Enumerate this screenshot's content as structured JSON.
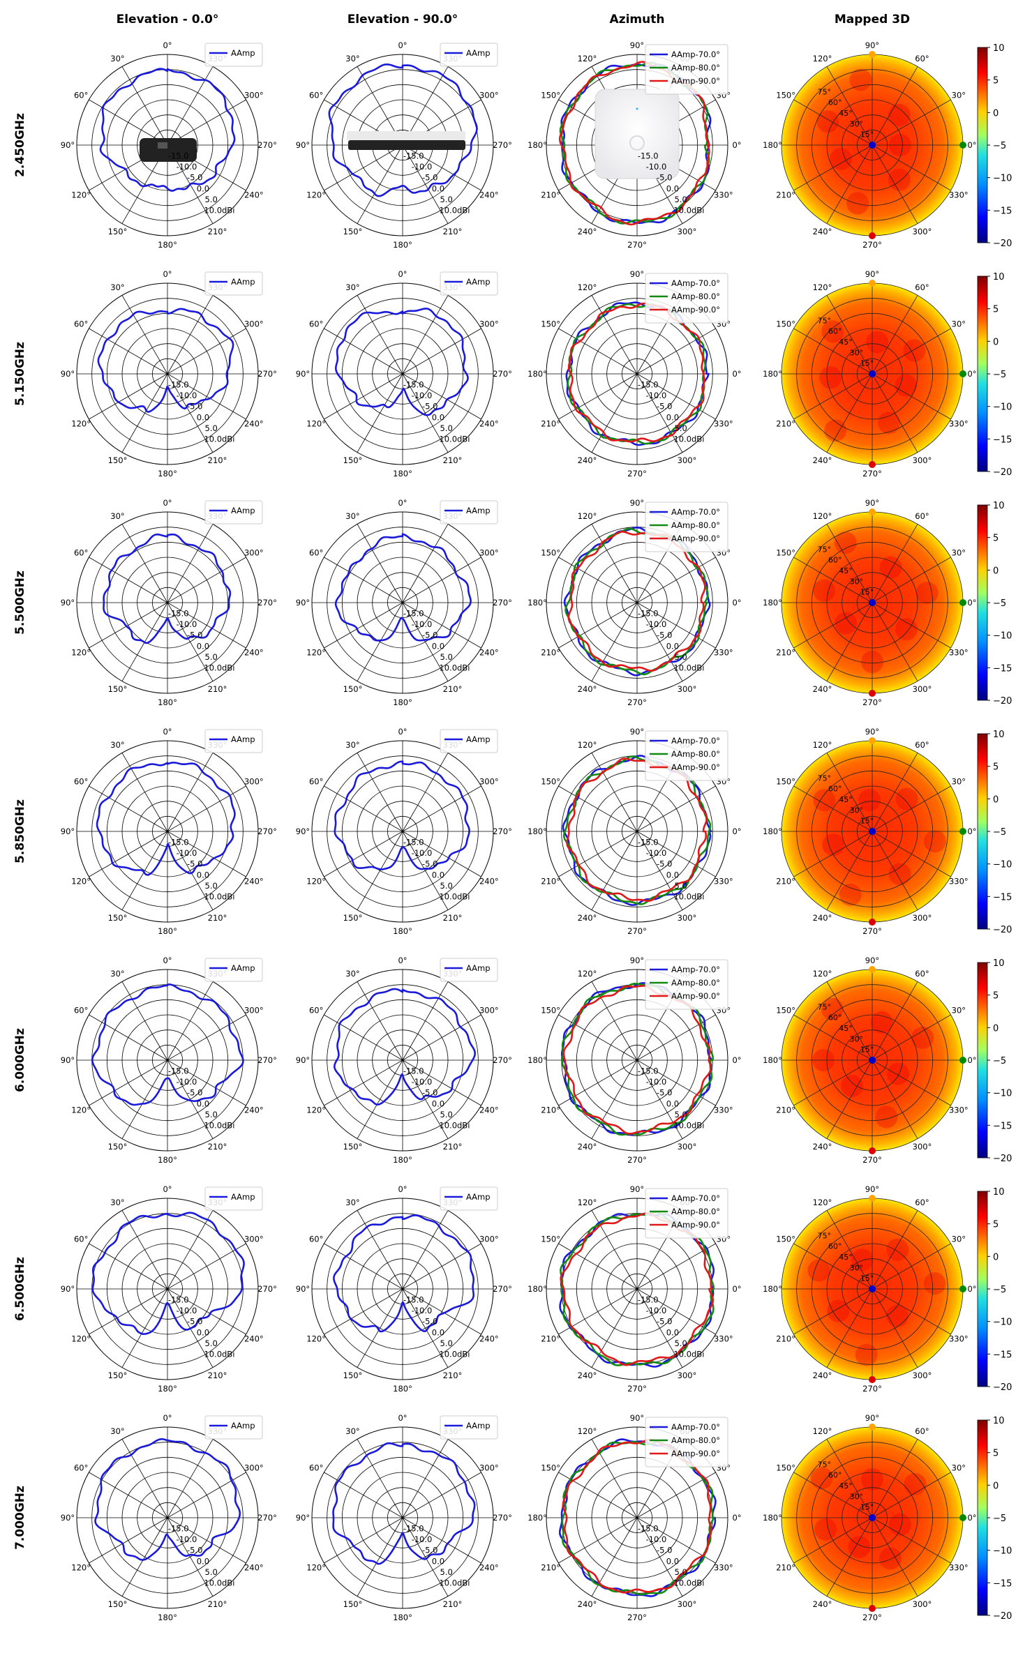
{
  "columns": [
    "Elevation - 0.0°",
    "Elevation - 90.0°",
    "Azimuth",
    "Mapped 3D"
  ],
  "rows": [
    "2.450GHz",
    "5.150GHz",
    "5.500GHz",
    "5.850GHz",
    "6.000GHz",
    "6.500GHz",
    "7.000GHz"
  ],
  "elevation_angle_labels": [
    "0°",
    "30°",
    "60°",
    "90°",
    "120°",
    "150°",
    "180°",
    "210°",
    "240°",
    "270°",
    "300°",
    "330°"
  ],
  "azimuth_angle_labels": [
    "0°",
    "30°",
    "60°",
    "90°",
    "120°",
    "150°",
    "180°",
    "210°",
    "240°",
    "270°",
    "300°",
    "330°"
  ],
  "radial_labels": [
    "-15.0",
    "-10.0",
    "-5.0",
    "0.0",
    "5.0",
    "10.0dBi"
  ],
  "elevation_legend": [
    "AAmp"
  ],
  "azimuth_legend": [
    "AAmp-70.0°",
    "AAmp-80.0°",
    "AAmp-90.0°"
  ],
  "mapped_theta_labels": [
    "15°",
    "30°",
    "45°",
    "60°",
    "75°"
  ],
  "colorbar_ticks": [
    "10",
    "5",
    "0",
    "−5",
    "−10",
    "−15",
    "−20"
  ],
  "series_colors": {
    "AAmp": "#1a1adb",
    "AAmp-70.0°": "#1a1adb",
    "AAmp-80.0°": "#118a11",
    "AAmp-90.0°": "#e01818"
  },
  "chart_data": {
    "type": "polar",
    "rlim_dBi": [
      -20,
      10
    ],
    "rticks_dBi": [
      -15,
      -10,
      -5,
      0,
      5,
      10
    ],
    "colorbar_range_dBi": [
      -20,
      10
    ],
    "frequencies": [
      {
        "freq": "2.450GHz",
        "elevation_0": {
          "name": "AAmp",
          "angles_deg": [
            0,
            30,
            60,
            90,
            120,
            150,
            180,
            210,
            240,
            270,
            300,
            330
          ],
          "gain_dBi": [
            4.5,
            4.4,
            3.8,
            1.5,
            -3,
            -5,
            -6,
            -4,
            -2,
            1,
            3.8,
            4.5
          ]
        },
        "elevation_90": {
          "name": "AAmp",
          "angles_deg": [
            0,
            30,
            60,
            90,
            120,
            150,
            180,
            210,
            240,
            270,
            300,
            330
          ],
          "gain_dBi": [
            6.5,
            6.3,
            5.8,
            3.5,
            -1,
            -2,
            -6,
            -3,
            -1,
            3,
            6,
            6.2
          ]
        },
        "azimuth": [
          {
            "name": "AAmp-70.0°",
            "angles_deg": [
              0,
              45,
              90,
              135,
              180,
              225,
              270,
              315
            ],
            "gain_dBi": [
              4,
              6.2,
              7,
              6,
              5,
              5,
              6,
              5
            ]
          },
          {
            "name": "AAmp-80.0°",
            "angles_deg": [
              0,
              45,
              90,
              135,
              180,
              225,
              270,
              315
            ],
            "gain_dBi": [
              3.5,
              6,
              6.8,
              5.8,
              4.8,
              4.8,
              5.8,
              4.8
            ]
          },
          {
            "name": "AAmp-90.0°",
            "angles_deg": [
              0,
              45,
              90,
              135,
              180,
              225,
              270,
              315
            ],
            "gain_dBi": [
              3.3,
              5.8,
              6.6,
              5.7,
              4.7,
              4.6,
              5.6,
              4.6
            ]
          }
        ]
      },
      {
        "freq": "5.150GHz",
        "elevation_0": {
          "name": "AAmp",
          "angles_deg": [
            0,
            30,
            60,
            90,
            120,
            150,
            180,
            210,
            240,
            270,
            300,
            330
          ],
          "gain_dBi": [
            1,
            2,
            3,
            2,
            -2,
            -6,
            -15,
            -8,
            -4,
            0.5,
            3,
            2
          ]
        },
        "elevation_90": {
          "name": "AAmp",
          "angles_deg": [
            0,
            30,
            60,
            90,
            120,
            150,
            180,
            210,
            240,
            270,
            300,
            330
          ],
          "gain_dBi": [
            0,
            3,
            3.5,
            1,
            -3,
            -7,
            -15,
            -5,
            -2,
            1,
            2,
            3
          ]
        },
        "azimuth": [
          {
            "name": "AAmp-70.0°",
            "angles_deg": [
              0,
              45,
              90,
              135,
              180,
              225,
              270,
              315
            ],
            "gain_dBi": [
              3,
              3,
              3.5,
              2.5,
              3,
              3,
              3,
              3
            ]
          },
          {
            "name": "AAmp-80.0°",
            "angles_deg": [
              0,
              45,
              90,
              135,
              180,
              225,
              270,
              315
            ],
            "gain_dBi": [
              2.8,
              2.8,
              3.2,
              2.3,
              2.8,
              2.8,
              2.8,
              2.8
            ]
          },
          {
            "name": "AAmp-90.0°",
            "angles_deg": [
              0,
              45,
              90,
              135,
              180,
              225,
              270,
              315
            ],
            "gain_dBi": [
              2.5,
              2.6,
              3,
              2,
              2.5,
              2.5,
              2.5,
              2.5
            ]
          }
        ]
      },
      {
        "freq": "5.500GHz",
        "elevation_0": {
          "name": "AAmp",
          "angles_deg": [
            0,
            30,
            60,
            90,
            120,
            150,
            180,
            210,
            240,
            270,
            300,
            330
          ],
          "gain_dBi": [
            2,
            1,
            1,
            1,
            -4,
            -5,
            -15,
            -6,
            -3,
            0,
            1,
            1
          ]
        },
        "elevation_90": {
          "name": "AAmp",
          "angles_deg": [
            0,
            30,
            60,
            90,
            120,
            150,
            180,
            210,
            240,
            270,
            300,
            330
          ],
          "gain_dBi": [
            2,
            1,
            0,
            2,
            -2,
            -6,
            -15,
            -5,
            -2,
            2,
            1,
            1
          ]
        },
        "azimuth": [
          {
            "name": "AAmp-70.0°",
            "angles_deg": [
              0,
              45,
              90,
              135,
              180,
              225,
              270,
              315
            ],
            "gain_dBi": [
              3,
              4,
              4,
              3,
              3,
              3,
              3,
              3
            ]
          },
          {
            "name": "AAmp-80.0°",
            "angles_deg": [
              0,
              45,
              90,
              135,
              180,
              225,
              270,
              315
            ],
            "gain_dBi": [
              2.8,
              3.8,
              3.8,
              2.8,
              2.8,
              2.8,
              2.8,
              2.8
            ]
          },
          {
            "name": "AAmp-90.0°",
            "angles_deg": [
              0,
              45,
              90,
              135,
              180,
              225,
              270,
              315
            ],
            "gain_dBi": [
              2.2,
              3.2,
              3.4,
              2.4,
              2.2,
              2.4,
              2,
              2.2
            ]
          }
        ]
      },
      {
        "freq": "5.850GHz",
        "elevation_0": {
          "name": "AAmp",
          "angles_deg": [
            0,
            30,
            60,
            90,
            120,
            150,
            180,
            210,
            240,
            270,
            300,
            330
          ],
          "gain_dBi": [
            3,
            3,
            3,
            3,
            0,
            -4,
            -15,
            -5,
            -2,
            2,
            3,
            3
          ]
        },
        "elevation_90": {
          "name": "AAmp",
          "angles_deg": [
            0,
            30,
            60,
            90,
            120,
            150,
            180,
            210,
            240,
            270,
            300,
            330
          ],
          "gain_dBi": [
            2.5,
            2.5,
            2,
            2,
            -1,
            -5,
            -15,
            -6,
            -2,
            2,
            2.5,
            2.5
          ]
        },
        "azimuth": [
          {
            "name": "AAmp-70.0°",
            "angles_deg": [
              0,
              45,
              90,
              135,
              180,
              225,
              270,
              315
            ],
            "gain_dBi": [
              3.5,
              4,
              4,
              3.5,
              3.5,
              3.5,
              3.5,
              3.5
            ]
          },
          {
            "name": "AAmp-80.0°",
            "angles_deg": [
              0,
              45,
              90,
              135,
              180,
              225,
              270,
              315
            ],
            "gain_dBi": [
              3.2,
              3.8,
              3.8,
              3.2,
              3.2,
              3.2,
              3.2,
              3.2
            ]
          },
          {
            "name": "AAmp-90.0°",
            "angles_deg": [
              0,
              45,
              90,
              135,
              180,
              225,
              270,
              315
            ],
            "gain_dBi": [
              2.3,
              3.3,
              3.5,
              2.8,
              2.5,
              2.6,
              2.4,
              2.5
            ]
          }
        ]
      },
      {
        "freq": "6.000GHz",
        "elevation_0": {
          "name": "AAmp",
          "angles_deg": [
            0,
            30,
            60,
            90,
            120,
            150,
            180,
            210,
            240,
            270,
            300,
            330
          ],
          "gain_dBi": [
            4,
            4,
            4,
            4,
            1,
            -3,
            -15,
            -4,
            -1,
            4,
            4,
            4
          ]
        },
        "elevation_90": {
          "name": "AAmp",
          "angles_deg": [
            0,
            30,
            60,
            90,
            120,
            150,
            180,
            210,
            240,
            270,
            300,
            330
          ],
          "gain_dBi": [
            3,
            3,
            3,
            2,
            0,
            -4,
            -15,
            -5,
            -2,
            3,
            3,
            3
          ]
        },
        "azimuth": [
          {
            "name": "AAmp-70.0°",
            "angles_deg": [
              0,
              45,
              90,
              135,
              180,
              225,
              270,
              315
            ],
            "gain_dBi": [
              4.5,
              5,
              5,
              5,
              4.5,
              4.5,
              4.5,
              4.5
            ]
          },
          {
            "name": "AAmp-80.0°",
            "angles_deg": [
              0,
              45,
              90,
              135,
              180,
              225,
              270,
              315
            ],
            "gain_dBi": [
              4.3,
              4.7,
              4.7,
              4.7,
              4.3,
              4.3,
              4.3,
              4.3
            ]
          },
          {
            "name": "AAmp-90.0°",
            "angles_deg": [
              0,
              45,
              90,
              135,
              180,
              225,
              270,
              315
            ],
            "gain_dBi": [
              3.5,
              4,
              4,
              4,
              3.5,
              3.5,
              3.5,
              3.5
            ]
          }
        ]
      },
      {
        "freq": "6.500GHz",
        "elevation_0": {
          "name": "AAmp",
          "angles_deg": [
            0,
            30,
            60,
            90,
            120,
            150,
            180,
            210,
            240,
            270,
            300,
            330
          ],
          "gain_dBi": [
            5,
            5,
            4,
            5,
            -1,
            -3,
            -15,
            -5,
            -4,
            5,
            6,
            6
          ]
        },
        "elevation_90": {
          "name": "AAmp",
          "angles_deg": [
            0,
            30,
            60,
            90,
            120,
            150,
            180,
            210,
            240,
            270,
            300,
            330
          ],
          "gain_dBi": [
            4,
            3,
            2,
            2,
            -1,
            -4,
            -15,
            -5,
            -4,
            4,
            4,
            4
          ]
        },
        "azimuth": [
          {
            "name": "AAmp-70.0°",
            "angles_deg": [
              0,
              45,
              90,
              135,
              180,
              225,
              270,
              315
            ],
            "gain_dBi": [
              5.5,
              6,
              5,
              4.5,
              5.5,
              5,
              5.5,
              5.5
            ]
          },
          {
            "name": "AAmp-80.0°",
            "angles_deg": [
              0,
              45,
              90,
              135,
              180,
              225,
              270,
              315
            ],
            "gain_dBi": [
              5.3,
              5.8,
              4.8,
              4.3,
              5.3,
              4.8,
              5.3,
              5.3
            ]
          },
          {
            "name": "AAmp-90.0°",
            "angles_deg": [
              0,
              45,
              90,
              135,
              180,
              225,
              270,
              315
            ],
            "gain_dBi": [
              4.5,
              5,
              4.2,
              3.5,
              4.5,
              4,
              4.5,
              4.5
            ]
          }
        ]
      },
      {
        "freq": "7.000GHz",
        "elevation_0": {
          "name": "AAmp",
          "angles_deg": [
            0,
            30,
            60,
            90,
            120,
            150,
            180,
            210,
            240,
            270,
            300,
            330
          ],
          "gain_dBi": [
            5,
            5,
            5,
            3,
            -2,
            -4,
            -15,
            -5,
            -3,
            3,
            5,
            5
          ]
        },
        "elevation_90": {
          "name": "AAmp",
          "angles_deg": [
            0,
            30,
            60,
            90,
            120,
            150,
            180,
            210,
            240,
            270,
            300,
            330
          ],
          "gain_dBi": [
            4,
            4,
            4,
            3,
            -1,
            -3,
            -15,
            -4,
            -3,
            3,
            4,
            4
          ]
        },
        "azimuth": [
          {
            "name": "AAmp-70.0°",
            "angles_deg": [
              0,
              45,
              90,
              135,
              180,
              225,
              270,
              315
            ],
            "gain_dBi": [
              5.5,
              5.5,
              5.5,
              5,
              5,
              5,
              5.5,
              5
            ]
          },
          {
            "name": "AAmp-80.0°",
            "angles_deg": [
              0,
              45,
              90,
              135,
              180,
              225,
              270,
              315
            ],
            "gain_dBi": [
              5.3,
              5.3,
              5.3,
              4.8,
              4.8,
              4.8,
              5.3,
              4.8
            ]
          },
          {
            "name": "AAmp-90.0°",
            "angles_deg": [
              0,
              45,
              90,
              135,
              180,
              225,
              270,
              315
            ],
            "gain_dBi": [
              4.8,
              5.3,
              5.5,
              4.3,
              4.3,
              4.3,
              4.8,
              4.3
            ]
          }
        ]
      }
    ]
  }
}
